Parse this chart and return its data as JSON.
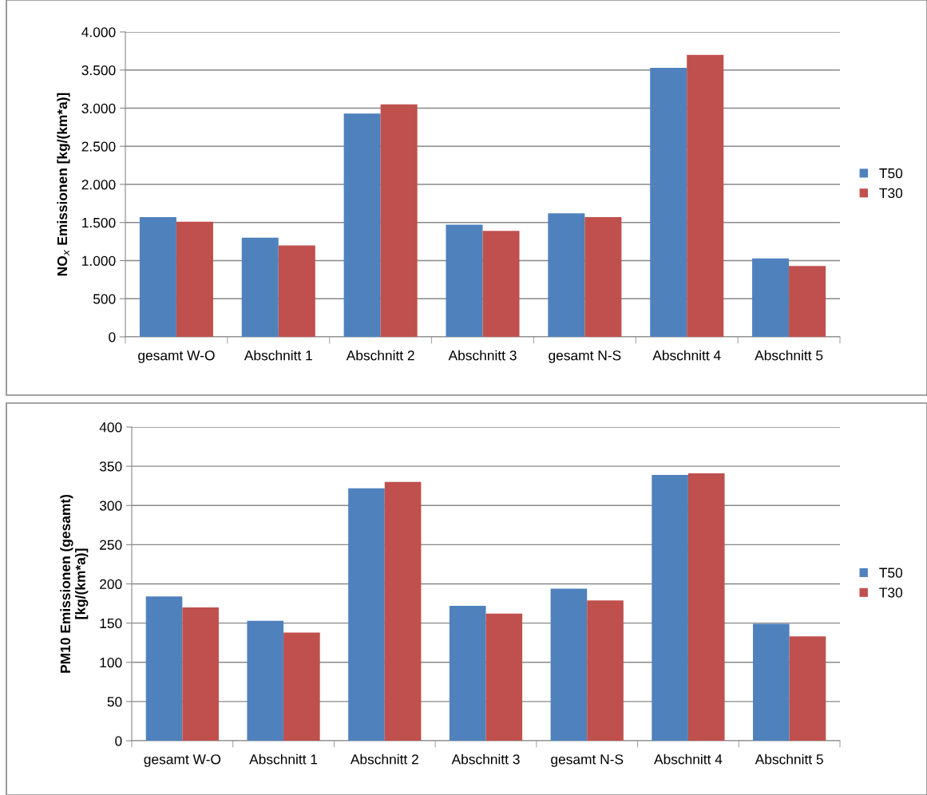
{
  "chart_data": [
    {
      "type": "bar",
      "ylabel": "NO$_{x}$ Emissionen [kg/(km*a)]",
      "categories": [
        "gesamt W-O",
        "Abschnitt 1",
        "Abschnitt 2",
        "Abschnitt 3",
        "gesamt N-S",
        "Abschnitt 4",
        "Abschnitt 5"
      ],
      "series": [
        {
          "name": "T50",
          "color": "#4f81bd",
          "values": [
            1570,
            1300,
            2930,
            1470,
            1620,
            3530,
            1030
          ]
        },
        {
          "name": "T30",
          "color": "#c0504d",
          "values": [
            1510,
            1200,
            3050,
            1390,
            1570,
            3700,
            930
          ]
        }
      ],
      "ylim": [
        0,
        4000
      ],
      "yticks": [
        0,
        {
          "value": 500,
          "label": "500"
        },
        {
          "value": 1000,
          "label": "1.000"
        },
        {
          "value": 1500,
          "label": "1.500"
        },
        {
          "value": 2000,
          "label": "2.000"
        },
        {
          "value": 2500,
          "label": "2.500"
        },
        {
          "value": 3000,
          "label": "3.000"
        },
        {
          "value": 3500,
          "label": "3.500"
        },
        {
          "value": 4000,
          "label": "4.000"
        }
      ],
      "grid": "y",
      "legend": "right"
    },
    {
      "type": "bar",
      "ylabel": "PM10 Emissionen (gesamt)\n[kg/(km*a)]",
      "categories": [
        "gesamt W-O",
        "Abschnitt 1",
        "Abschnitt 2",
        "Abschnitt 3",
        "gesamt N-S",
        "Abschnitt 4",
        "Abschnitt 5"
      ],
      "series": [
        {
          "name": "T50",
          "color": "#4f81bd",
          "values": [
            184,
            153,
            322,
            172,
            194,
            339,
            149
          ]
        },
        {
          "name": "T30",
          "color": "#c0504d",
          "values": [
            170,
            138,
            330,
            162,
            179,
            341,
            133
          ]
        }
      ],
      "ylim": [
        0,
        400
      ],
      "yticks": [
        0,
        50,
        100,
        150,
        200,
        250,
        300,
        350,
        400
      ],
      "grid": "y",
      "legend": "right"
    }
  ]
}
